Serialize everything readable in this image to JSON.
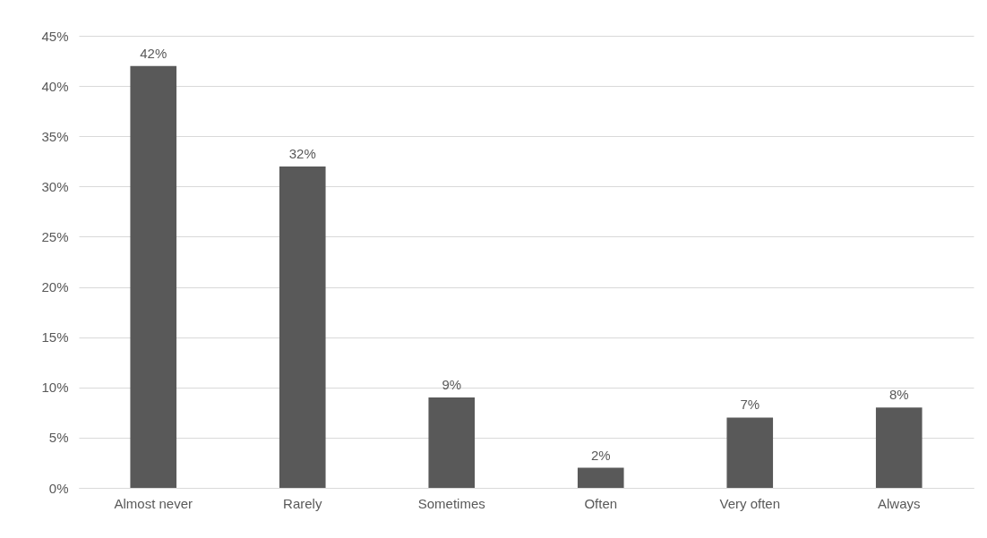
{
  "chart_data": {
    "type": "bar",
    "categories": [
      "Almost never",
      "Rarely",
      "Sometimes",
      "Often",
      "Very often",
      "Always"
    ],
    "values": [
      42,
      32,
      9,
      2,
      7,
      8
    ],
    "value_labels": [
      "42%",
      "32%",
      "9%",
      "2%",
      "7%",
      "8%"
    ],
    "color": "#595959",
    "ylim": [
      0,
      45
    ],
    "yticks": [
      {
        "value": 0,
        "label": "0%"
      },
      {
        "value": 5,
        "label": "5%"
      },
      {
        "value": 10,
        "label": "10%"
      },
      {
        "value": 15,
        "label": "15%"
      },
      {
        "value": 20,
        "label": "20%"
      },
      {
        "value": 25,
        "label": "25%"
      },
      {
        "value": 30,
        "label": "30%"
      },
      {
        "value": 35,
        "label": "35%"
      },
      {
        "value": 40,
        "label": "40%"
      },
      {
        "value": 45,
        "label": "45%"
      }
    ],
    "grid": "y"
  }
}
